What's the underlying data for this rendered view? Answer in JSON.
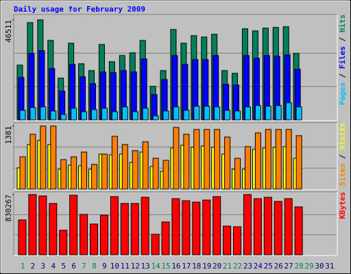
{
  "chart_data": {
    "type": "bar",
    "title": "Daily usage for February 2009",
    "categories": [
      "1",
      "2",
      "3",
      "4",
      "5",
      "6",
      "7",
      "8",
      "9",
      "10",
      "11",
      "12",
      "13",
      "14",
      "15",
      "16",
      "17",
      "18",
      "19",
      "20",
      "21",
      "22",
      "23",
      "24",
      "25",
      "26",
      "27",
      "28",
      "29",
      "30",
      "31"
    ],
    "category_colors": [
      "#00805C",
      "#000080",
      "#000080",
      "#000080",
      "#000080",
      "#000080",
      "#00805C",
      "#00805C",
      "#000080",
      "#000080",
      "#000080",
      "#000080",
      "#000080",
      "#00805C",
      "#00805C",
      "#000080",
      "#000080",
      "#000080",
      "#000080",
      "#000080",
      "#00805C",
      "#00805C",
      "#000080",
      "#000080",
      "#000080",
      "#000080",
      "#000080",
      "#00805C",
      "#00805C",
      "#000080",
      "#000080"
    ],
    "legend_separator": "/",
    "panels": [
      {
        "ylim": [
          0,
          46511
        ],
        "yticks": [
          46511
        ],
        "series": [
          {
            "name": "Hits",
            "color": "#00805C",
            "values": [
              25485,
              45237,
              46511,
              36954,
              19433,
              35680,
              26123,
              22937,
              35043,
              27078,
              29946,
              31220,
              36954,
              15610,
              22937,
              42051,
              35680,
              39184,
              38547,
              39821,
              22937,
              21663,
              42370,
              41414,
              42688,
              43007,
              43326,
              30901,
              null,
              null,
              null
            ]
          },
          {
            "name": "Files",
            "color": "#0000FF",
            "values": [
              19752,
              30903,
              32178,
              23894,
              13380,
              25805,
              20071,
              16885,
              22301,
              21982,
              22938,
              22301,
              28354,
              11788,
              18796,
              29947,
              25805,
              28035,
              28035,
              29947,
              16566,
              16248,
              29947,
              28672,
              29947,
              29628,
              30265,
              23575,
              null,
              null,
              null
            ]
          },
          {
            "name": "Pages",
            "color": "#00C0FF",
            "values": [
              4460,
              5735,
              6053,
              4142,
              2549,
              5416,
              3823,
              4779,
              5416,
              3823,
              6053,
              3823,
              5416,
              1912,
              4142,
              6053,
              4460,
              6372,
              6372,
              6053,
              4460,
              4142,
              6053,
              6691,
              6372,
              6691,
              7965,
              6053,
              null,
              null,
              null
            ]
          }
        ]
      },
      {
        "ylim": [
          0,
          1381
        ],
        "yticks": [
          1381
        ],
        "series": [
          {
            "name": "Sites",
            "color": "#FF8000",
            "values": [
              706,
              1201,
              1381,
              1381,
              645,
              706,
              811,
              540,
              766,
              1156,
              976,
              841,
              1036,
              675,
              630,
              1351,
              1201,
              1306,
              1306,
              1306,
              1141,
              675,
              931,
              1231,
              1306,
              1306,
              1306,
              1171,
              null,
              null,
              null
            ]
          },
          {
            "name": "Visits",
            "color": "#FFFF00",
            "values": [
              465,
              976,
              1066,
              976,
              435,
              525,
              510,
              435,
              766,
              751,
              766,
              585,
              811,
              495,
              390,
              901,
              961,
              916,
              946,
              916,
              766,
              435,
              435,
              871,
              901,
              916,
              931,
              675,
              null,
              null,
              null
            ]
          }
        ]
      },
      {
        "ylim": [
          0,
          830267
        ],
        "yticks": [
          830267
        ],
        "series": [
          {
            "name": "KBytes",
            "color": "#FF0000",
            "values": [
              481185,
              830267,
              811410,
              707625,
              339660,
              820845,
              556665,
              424575,
              547230,
              801975,
              707625,
              707625,
              792540,
              283050,
              452880,
              773670,
              745365,
              726495,
              754800,
              801975,
              396270,
              386835,
              830267,
              773670,
              792540,
              735930,
              773670,
              660450,
              null,
              null,
              null
            ]
          }
        ]
      }
    ]
  }
}
